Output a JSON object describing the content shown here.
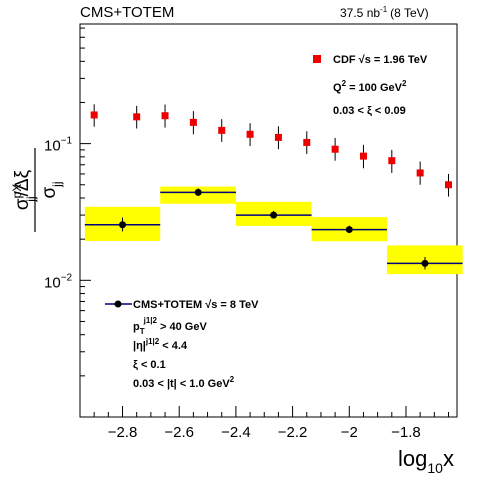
{
  "header": {
    "collab": "CMS+TOTEM",
    "lumi": "37.5 nb",
    "lumi_exp": "-1",
    "energy": "(8 TeV)"
  },
  "chart_data": {
    "type": "scatter",
    "xlabel_main": "log",
    "xlabel_sub": "10",
    "xlabel_tail": "x",
    "xlim": [
      -2.95,
      -1.62
    ],
    "ylim": [
      0.001,
      0.75
    ],
    "yscale": "log",
    "xticks": [
      -2.8,
      -2.6,
      -2.4,
      -2.2,
      -2.0,
      -1.8
    ],
    "xtick_labels": [
      "−2.8",
      "−2.6",
      "−2.4",
      "−2.2",
      "−2",
      "−1.8"
    ],
    "ytick_labels": [
      {
        "value": 0.1,
        "base": "10",
        "exp": "−1"
      },
      {
        "value": 0.01,
        "base": "10",
        "exp": "−2"
      }
    ],
    "series": [
      {
        "name": "CDF  √s = 1.96 TeV",
        "color": "#ee0000",
        "marker": "square",
        "x": [
          -2.9,
          -2.75,
          -2.65,
          -2.55,
          -2.45,
          -2.35,
          -2.25,
          -2.15,
          -2.05,
          -1.95,
          -1.85,
          -1.75,
          -1.65
        ],
        "y": [
          0.162,
          0.157,
          0.16,
          0.143,
          0.125,
          0.117,
          0.111,
          0.102,
          0.091,
          0.081,
          0.075,
          0.061,
          0.05
        ],
        "yerr_low": [
          0.133,
          0.129,
          0.131,
          0.117,
          0.103,
          0.096,
          0.091,
          0.084,
          0.075,
          0.066,
          0.061,
          0.05,
          0.041
        ],
        "yerr_high": [
          0.194,
          0.189,
          0.193,
          0.173,
          0.151,
          0.141,
          0.134,
          0.123,
          0.11,
          0.098,
          0.09,
          0.074,
          0.06
        ]
      },
      {
        "name": "CMS+TOTEM  √s = 8 TeV",
        "color": "#000000",
        "marker": "circle",
        "x": [
          -2.8,
          -2.533,
          -2.267,
          -2.0,
          -1.733
        ],
        "xerr_low": [
          -2.933,
          -2.667,
          -2.4,
          -2.133,
          -1.867
        ],
        "xerr_high": [
          -2.667,
          -2.4,
          -2.133,
          -1.867,
          -1.6
        ],
        "y": [
          0.0255,
          0.044,
          0.03,
          0.0235,
          0.0133
        ],
        "yerr_low": [
          0.0228,
          0.0415,
          0.0283,
          0.0222,
          0.012
        ],
        "yerr_high": [
          0.0288,
          0.047,
          0.0322,
          0.0251,
          0.0148
        ],
        "syst_low": [
          0.0194,
          0.0363,
          0.025,
          0.0193,
          0.0111
        ],
        "syst_high": [
          0.0345,
          0.0485,
          0.0375,
          0.029,
          0.018
        ],
        "syst_color": "#ffff00"
      }
    ]
  },
  "legend_cdf": {
    "label": "CDF  √s = 1.96 TeV",
    "q2": "Q",
    "q2_exp": "2",
    "q2_val": " = 100 GeV",
    "q2_unit_exp": "2",
    "xi": "0.03 < ξ < 0.09"
  },
  "legend_cms": {
    "label": "CMS+TOTEM  √s = 8 TeV",
    "pt": "p",
    "pt_sub": "T",
    "pt_sup": "j1|2",
    "pt_val": " > 40 GeV",
    "eta": "|η|",
    "eta_sup": "j1|2",
    "eta_val": " < 4.4",
    "xi": "ξ < 0.1",
    "t": "0.03 < |t| < 1.0 GeV",
    "t_exp": "2"
  },
  "yaxis": {
    "sigma": "σ",
    "num_sup": "pX",
    "num_sub": "jj",
    "num_tail": "/Δξ",
    "den_sub": "jj"
  }
}
